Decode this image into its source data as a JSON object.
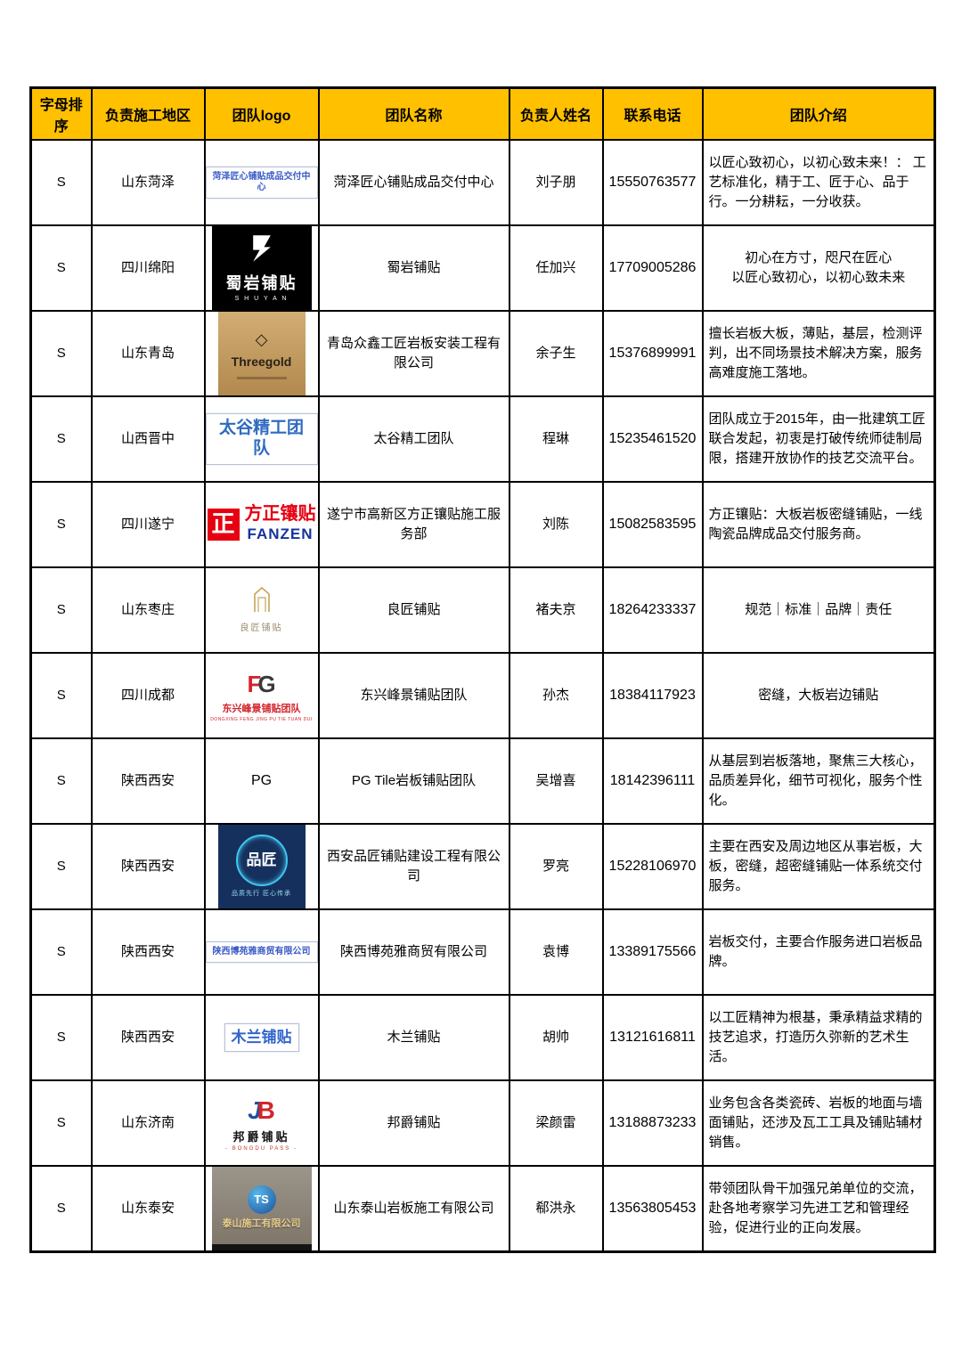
{
  "table": {
    "header_bg": "#FFC000",
    "border_color": "#000000",
    "columns": [
      {
        "label": "字母排序"
      },
      {
        "label": "负责施工地区"
      },
      {
        "label": "团队logo"
      },
      {
        "label": "团队名称"
      },
      {
        "label": "负责人姓名"
      },
      {
        "label": "联系电话"
      },
      {
        "label": "团队介绍"
      }
    ],
    "rows": [
      {
        "sort_letter": "S",
        "region": "山东菏泽",
        "logo": {
          "kind": "textbox",
          "text": "菏泽匠心铺贴成品交付中心",
          "color": "#3a5bc7",
          "size": 10,
          "bold": true
        },
        "team_name": "菏泽匠心铺贴成品交付中心",
        "contact_name": "刘子朋",
        "phone": "15550763577",
        "intro": {
          "align": "left",
          "lines": [
            "以匠心致初心，以初心致未来！： 工艺标准化，精于工、匠于心、品于行。一分耕耘，一分收获。"
          ]
        }
      },
      {
        "sort_letter": "S",
        "region": "四川绵阳",
        "logo": {
          "kind": "black",
          "title": "蜀岩铺贴",
          "sub": "S H U Y A N",
          "bg": "#000000",
          "fg": "#ffffff"
        },
        "team_name": "蜀岩铺贴",
        "contact_name": "任加兴",
        "phone": "17709005286",
        "intro": {
          "align": "center",
          "lines": [
            "初心在方寸，咫尺在匠心",
            "以匠心致初心，以初心致未来"
          ]
        }
      },
      {
        "sort_letter": "S",
        "region": "山东青岛",
        "logo": {
          "kind": "gold",
          "title": "Threegold",
          "bg1": "#d2ad74",
          "bg2": "#b2894e",
          "fg": "#2a2118"
        },
        "team_name": "青岛众鑫工匠岩板安装工程有限公司",
        "contact_name": "余子生",
        "phone": "15376899991",
        "intro": {
          "align": "left",
          "lines": [
            "擅长岩板大板，薄贴，基层，检测评判，出不同场景技术解决方案，服务高难度施工落地。"
          ]
        }
      },
      {
        "sort_letter": "S",
        "region": "山西晋中",
        "logo": {
          "kind": "textbox",
          "text": "太谷精工团队",
          "color": "#2f6bc0",
          "size": 19,
          "bold": true
        },
        "team_name": "太谷精工团队",
        "contact_name": "程琳",
        "phone": "15235461520",
        "intro": {
          "align": "left",
          "lines": [
            "团队成立于2015年，由一批建筑工匠联合发起，初衷是打破传统师徒制局限，搭建开放协作的技艺交流平台。"
          ]
        }
      },
      {
        "sort_letter": "S",
        "region": "四川遂宁",
        "logo": {
          "kind": "redseal",
          "seal": "正",
          "title": "方正镶贴",
          "sub": "FANZEN",
          "seal_color": "#e60012",
          "title_color": "#e60012",
          "sub_color": "#16339e"
        },
        "team_name": "遂宁市高新区方正镶贴施工服务部",
        "contact_name": "刘陈",
        "phone": "15082583595",
        "intro": {
          "align": "left",
          "lines": [
            "方正镶贴：大板岩板密缝铺贴，一线陶瓷品牌成品交付服务商。"
          ]
        }
      },
      {
        "sort_letter": "S",
        "region": "山东枣庄",
        "logo": {
          "kind": "iconcap",
          "caption": "良匠铺贴",
          "color": "#c5a75a",
          "caption_color": "#9a8a6a"
        },
        "team_name": "良匠铺贴",
        "contact_name": "褚夫京",
        "phone": "18264233337",
        "intro": {
          "align": "center",
          "lines": [
            "规范｜标准｜品牌｜责任"
          ]
        }
      },
      {
        "sort_letter": "S",
        "region": "四川成都",
        "logo": {
          "kind": "fgmono",
          "m1": "F",
          "m2": "G",
          "m1_color": "#d3242c",
          "m2_color": "#3a3a3a",
          "caption": "东兴峰景铺贴团队",
          "sub": "DONGXING FENG JING PU TIE TUAN DUI",
          "caption_color": "#d3242c"
        },
        "team_name": "东兴峰景铺贴团队",
        "contact_name": "孙杰",
        "phone": "18384117923",
        "intro": {
          "align": "center",
          "lines": [
            "密缝，大板岩边铺贴"
          ]
        }
      },
      {
        "sort_letter": "S",
        "region": "陕西西安",
        "logo": {
          "kind": "plain",
          "text": "PG"
        },
        "team_name": "PG Tile岩板铺贴团队",
        "contact_name": "吴增喜",
        "phone": "18142396111",
        "intro": {
          "align": "left",
          "lines": [
            "从基层到岩板落地，聚焦三大核心，品质差异化，细节可视化，服务个性化。"
          ]
        }
      },
      {
        "sort_letter": "S",
        "region": "陕西西安",
        "logo": {
          "kind": "navy",
          "title": "品匠",
          "sub": "品质先行  匠心传承",
          "bg": "#16305e",
          "ring": "#3fc6ee",
          "fg": "#ffffff",
          "sub_color": "#9adef2"
        },
        "team_name": "西安品匠铺贴建设工程有限公司",
        "contact_name": "罗亮",
        "phone": "15228106970",
        "intro": {
          "align": "left",
          "lines": [
            "主要在西安及周边地区从事岩板，大板，密缝，超密缝铺贴一体系统交付服务。"
          ]
        }
      },
      {
        "sort_letter": "S",
        "region": "陕西西安",
        "logo": {
          "kind": "textbox",
          "text": "陕西博苑雅商贸有限公司",
          "color": "#3a5bc7",
          "size": 10,
          "bold": true
        },
        "team_name": "陕西博苑雅商贸有限公司",
        "contact_name": "袁博",
        "phone": "13389175566",
        "intro": {
          "align": "left",
          "lines": [
            "岩板交付，主要合作服务进口岩板品牌。"
          ]
        }
      },
      {
        "sort_letter": "S",
        "region": "陕西西安",
        "logo": {
          "kind": "textbox",
          "text": "木兰铺贴",
          "color": "#3366cc",
          "size": 17,
          "bold": true
        },
        "team_name": "木兰铺贴",
        "contact_name": "胡帅",
        "phone": "13121616811",
        "intro": {
          "align": "left",
          "lines": [
            "以工匠精神为根基，秉承精益求精的技艺追求，打造历久弥新的艺术生活。"
          ]
        }
      },
      {
        "sort_letter": "S",
        "region": "山东济南",
        "logo": {
          "kind": "jbmono",
          "m1": "J",
          "m2": "B",
          "m1_color": "#1f4fa0",
          "m2_color": "#d3242c",
          "caption": "邦爵铺贴",
          "sub": "- BONGDU PASS -",
          "sub_color": "#c0392b"
        },
        "team_name": "邦爵铺贴",
        "contact_name": "梁颜雷",
        "phone": "13188873233",
        "intro": {
          "align": "left",
          "lines": [
            "业务包含各类瓷砖、岩板的地面与墙面铺贴，还涉及瓦工工具及铺贴辅材销售。"
          ]
        }
      },
      {
        "sort_letter": "S",
        "region": "山东泰安",
        "logo": {
          "kind": "photo",
          "monogram": "TS",
          "caption": "泰山施工有限公司",
          "caption_color": "#e8cf8e",
          "bg1": "#9b958a",
          "bg2": "#7e7468"
        },
        "team_name": "山东泰山岩板施工有限公司",
        "contact_name": "郗洪永",
        "phone": "13563805453",
        "intro": {
          "align": "left",
          "lines": [
            "带领团队骨干加强兄弟单位的交流，赴各地考察学习先进工艺和管理经验，促进行业的正向发展。"
          ]
        }
      }
    ]
  }
}
